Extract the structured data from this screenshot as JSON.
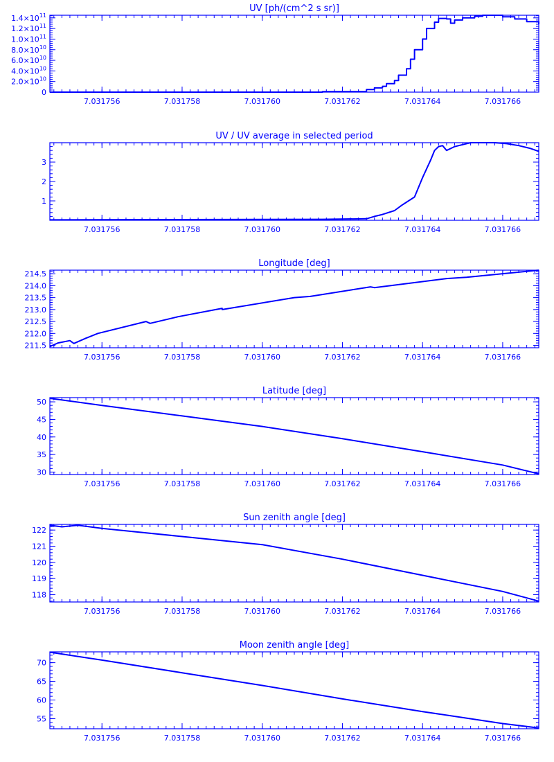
{
  "colors": {
    "plot": "#0000ff",
    "background": "#ffffff"
  },
  "chart_data": [
    {
      "type": "line",
      "style": "step",
      "title": "UV [ph/(cm^2 s sr)]",
      "grid": false,
      "xlim": [
        7.0317547,
        7.0317669
      ],
      "ylim": [
        0,
        145000000000
      ],
      "x_ticks": [
        "7.031756",
        "7.031758",
        "7.031760",
        "7.031762",
        "7.031764",
        "7.031766"
      ],
      "x_tick_values": [
        7.031756,
        7.031758,
        7.03176,
        7.031762,
        7.031764,
        7.031766
      ],
      "y_ticks": [
        {
          "value": 0,
          "mant": "0",
          "exp": ""
        },
        {
          "value": 20000000000,
          "mant": "2.0×10",
          "exp": "10"
        },
        {
          "value": 40000000000,
          "mant": "4.0×10",
          "exp": "10"
        },
        {
          "value": 60000000000,
          "mant": "6.0×10",
          "exp": "10"
        },
        {
          "value": 80000000000,
          "mant": "8.0×10",
          "exp": "10"
        },
        {
          "value": 100000000000,
          "mant": "1.0×10",
          "exp": "11"
        },
        {
          "value": 120000000000,
          "mant": "1.2×10",
          "exp": "11"
        },
        {
          "value": 140000000000,
          "mant": "1.4×10",
          "exp": "11"
        }
      ],
      "x": [
        7.0317547,
        7.0317615,
        7.0317626,
        7.0317628,
        7.031763,
        7.0317631,
        7.0317633,
        7.0317634,
        7.0317636,
        7.0317637,
        7.0317638,
        7.031764,
        7.0317641,
        7.0317643,
        7.0317644,
        7.0317646,
        7.0317647,
        7.0317648,
        7.031765,
        7.0317653,
        7.0317655,
        7.0317657,
        7.031766,
        7.0317663,
        7.0317666,
        7.0317669
      ],
      "values": [
        0,
        1000000000,
        5000000000,
        8000000000,
        11000000000,
        16000000000,
        22000000000,
        32000000000,
        44000000000,
        62000000000,
        80000000000,
        100000000000,
        120000000000,
        132000000000,
        139000000000,
        138000000000,
        130000000000,
        136000000000,
        140000000000,
        143000000000,
        145000000000,
        145000000000,
        142000000000,
        138000000000,
        133000000000,
        128000000000
      ]
    },
    {
      "type": "line",
      "title": "UV / UV average in selected period",
      "grid": false,
      "xlim": [
        7.0317547,
        7.0317669
      ],
      "ylim": [
        0,
        4
      ],
      "x_ticks": [
        "7.031756",
        "7.031758",
        "7.031760",
        "7.031762",
        "7.031764",
        "7.031766"
      ],
      "x_tick_values": [
        7.031756,
        7.031758,
        7.03176,
        7.031762,
        7.031764,
        7.031766
      ],
      "y_ticks": [
        {
          "value": 1,
          "label": "1"
        },
        {
          "value": 2,
          "label": "2"
        },
        {
          "value": 3,
          "label": "3"
        }
      ],
      "x": [
        7.0317547,
        7.0317615,
        7.0317626,
        7.0317628,
        7.031763,
        7.0317633,
        7.0317635,
        7.0317638,
        7.031764,
        7.0317642,
        7.0317643,
        7.0317644,
        7.0317645,
        7.0317646,
        7.0317648,
        7.031765,
        7.0317652,
        7.0317655,
        7.0317658,
        7.0317661,
        7.0317664,
        7.0317667,
        7.0317669
      ],
      "values": [
        0.02,
        0.05,
        0.08,
        0.2,
        0.3,
        0.5,
        0.8,
        1.2,
        2.2,
        3.1,
        3.6,
        3.8,
        3.85,
        3.6,
        3.8,
        3.9,
        4.0,
        4.0,
        4.0,
        3.95,
        3.85,
        3.7,
        3.55
      ]
    },
    {
      "type": "line",
      "title": "Longitude [deg]",
      "grid": false,
      "xlim": [
        7.0317547,
        7.0317669
      ],
      "ylim": [
        211.4,
        214.65
      ],
      "x_ticks": [
        "7.031756",
        "7.031758",
        "7.031760",
        "7.031762",
        "7.031764",
        "7.031766"
      ],
      "x_tick_values": [
        7.031756,
        7.031758,
        7.03176,
        7.031762,
        7.031764,
        7.031766
      ],
      "y_ticks": [
        {
          "value": 211.5,
          "label": "211.5"
        },
        {
          "value": 212.0,
          "label": "212.0"
        },
        {
          "value": 212.5,
          "label": "212.5"
        },
        {
          "value": 213.0,
          "label": "213.0"
        },
        {
          "value": 213.5,
          "label": "213.5"
        },
        {
          "value": 214.0,
          "label": "214.0"
        },
        {
          "value": 214.5,
          "label": "214.5"
        }
      ],
      "x": [
        7.0317547,
        7.0317549,
        7.0317552,
        7.0317553,
        7.0317556,
        7.0317559,
        7.0317571,
        7.0317572,
        7.0317579,
        7.031759,
        7.031759,
        7.0317608,
        7.0317612,
        7.0317627,
        7.0317628,
        7.0317646,
        7.0317651,
        7.0317669
      ],
      "values": [
        211.45,
        211.6,
        211.7,
        211.58,
        211.8,
        212.0,
        212.5,
        212.42,
        212.7,
        213.05,
        213.0,
        213.5,
        213.55,
        213.95,
        213.92,
        214.3,
        214.35,
        214.65
      ]
    },
    {
      "type": "line",
      "title": "Latitude [deg]",
      "grid": false,
      "xlim": [
        7.0317547,
        7.0317669
      ],
      "ylim": [
        29.3,
        51.2
      ],
      "x_ticks": [
        "7.031756",
        "7.031758",
        "7.031760",
        "7.031762",
        "7.031764",
        "7.031766"
      ],
      "x_tick_values": [
        7.031756,
        7.031758,
        7.03176,
        7.031762,
        7.031764,
        7.031766
      ],
      "y_ticks": [
        {
          "value": 30,
          "label": "30"
        },
        {
          "value": 35,
          "label": "35"
        },
        {
          "value": 40,
          "label": "40"
        },
        {
          "value": 45,
          "label": "45"
        },
        {
          "value": 50,
          "label": "50"
        }
      ],
      "x": [
        7.0317547,
        7.031756,
        7.031758,
        7.03176,
        7.031762,
        7.031764,
        7.031766,
        7.0317669
      ],
      "values": [
        51.0,
        49.0,
        46.0,
        43.0,
        39.5,
        35.8,
        32.0,
        29.5
      ]
    },
    {
      "type": "line",
      "title": "Sun zenith angle [deg]",
      "grid": false,
      "xlim": [
        7.0317547,
        7.0317669
      ],
      "ylim": [
        117.55,
        122.35
      ],
      "x_ticks": [
        "7.031756",
        "7.031758",
        "7.031760",
        "7.031762",
        "7.031764",
        "7.031766"
      ],
      "x_tick_values": [
        7.031756,
        7.031758,
        7.03176,
        7.031762,
        7.031764,
        7.031766
      ],
      "y_ticks": [
        {
          "value": 118,
          "label": "118"
        },
        {
          "value": 119,
          "label": "119"
        },
        {
          "value": 120,
          "label": "120"
        },
        {
          "value": 121,
          "label": "121"
        },
        {
          "value": 122,
          "label": "122"
        }
      ],
      "x": [
        7.0317547,
        7.031755,
        7.0317554,
        7.031756,
        7.031758,
        7.03176,
        7.031762,
        7.031764,
        7.031766,
        7.0317669
      ],
      "values": [
        122.3,
        122.2,
        122.3,
        122.1,
        121.6,
        121.1,
        120.2,
        119.2,
        118.2,
        117.6
      ]
    },
    {
      "type": "line",
      "title": "Moon zenith angle [deg]",
      "grid": false,
      "xlim": [
        7.0317547,
        7.0317669
      ],
      "ylim": [
        52.3,
        72.9
      ],
      "x_ticks": [
        "7.031756",
        "7.031758",
        "7.031760",
        "7.031762",
        "7.031764",
        "7.031766"
      ],
      "x_tick_values": [
        7.031756,
        7.031758,
        7.03176,
        7.031762,
        7.031764,
        7.031766
      ],
      "y_ticks": [
        {
          "value": 55,
          "label": "55"
        },
        {
          "value": 60,
          "label": "60"
        },
        {
          "value": 65,
          "label": "65"
        },
        {
          "value": 70,
          "label": "70"
        }
      ],
      "x": [
        7.0317547,
        7.031756,
        7.031758,
        7.03176,
        7.031762,
        7.031764,
        7.031766,
        7.0317669
      ],
      "values": [
        72.8,
        70.7,
        67.3,
        63.9,
        60.3,
        56.9,
        53.7,
        52.5
      ]
    }
  ]
}
